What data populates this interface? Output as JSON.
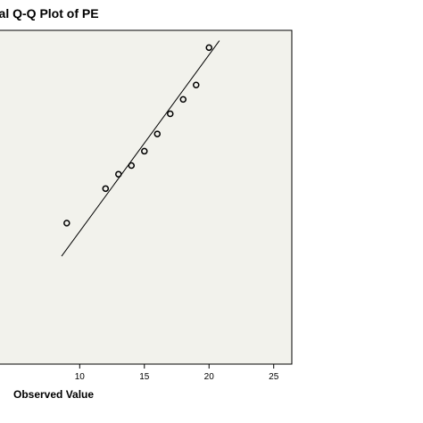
{
  "chart_data": {
    "type": "scatter",
    "title": "nal Q-Q Plot of PE",
    "xlabel": "Observed Value",
    "ylabel": "",
    "xlim": [
      3.7,
      26.4
    ],
    "ylim": [
      -0.29,
      0.87
    ],
    "grid": false,
    "x_ticks": [
      10,
      15,
      20,
      25
    ],
    "points": [
      {
        "x": 9,
        "y": 0.2
      },
      {
        "x": 12,
        "y": 0.32
      },
      {
        "x": 13,
        "y": 0.37
      },
      {
        "x": 14,
        "y": 0.4
      },
      {
        "x": 15,
        "y": 0.45
      },
      {
        "x": 16,
        "y": 0.51
      },
      {
        "x": 17,
        "y": 0.58
      },
      {
        "x": 18,
        "y": 0.63
      },
      {
        "x": 19,
        "y": 0.68
      },
      {
        "x": 20,
        "y": 0.81
      }
    ],
    "reference_line": {
      "x": [
        8.6,
        20.8
      ],
      "y": [
        0.085,
        0.834
      ]
    }
  },
  "colors": {
    "plot_background": "#f2f2ec",
    "page_background": "#ffffff",
    "frame": "#000000",
    "marker": "#000000"
  }
}
